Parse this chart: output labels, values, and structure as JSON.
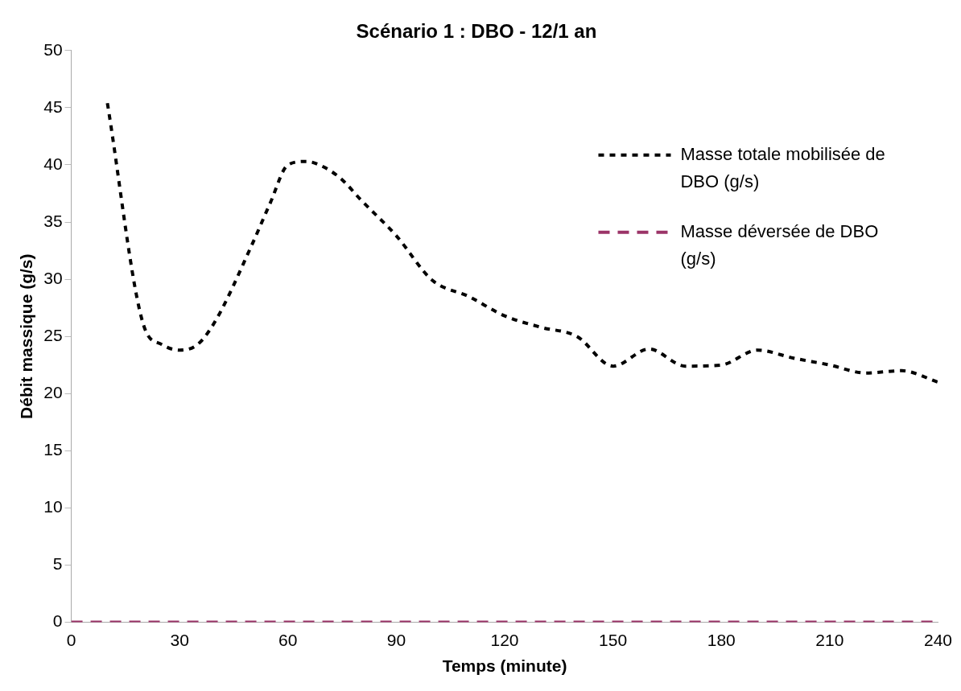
{
  "chart_data": {
    "type": "line",
    "title": "Scénario 1 : DBO - 12/1 an",
    "xlabel": "Temps (minute)",
    "ylabel": "Débit massique (g/s)",
    "xlim": [
      0,
      240
    ],
    "xticks": [
      0,
      30,
      60,
      90,
      120,
      150,
      180,
      210,
      240
    ],
    "ylim": [
      0,
      50
    ],
    "yticks": [
      0,
      5,
      10,
      15,
      20,
      25,
      30,
      35,
      40,
      45,
      50
    ],
    "grid": false,
    "legend": "top right",
    "marker": "none",
    "series": [
      {
        "name": "Masse totale mobilisée de DBO (g/s)",
        "color": "#000000",
        "line_style": "dotted",
        "x": [
          10,
          20,
          25,
          30,
          35,
          40,
          50,
          55,
          60,
          65,
          70,
          75,
          80,
          90,
          100,
          110,
          120,
          130,
          140,
          150,
          160,
          170,
          180,
          190,
          200,
          210,
          220,
          230,
          240
        ],
        "values": [
          45.4,
          26,
          24.3,
          23.8,
          24.3,
          26.4,
          33,
          36.6,
          40,
          40.3,
          39.8,
          38.7,
          37,
          33.8,
          29.9,
          28.5,
          26.8,
          25.8,
          25,
          22.4,
          23.9,
          22.4,
          22.5,
          23.8,
          23.1,
          22.5,
          21.8,
          22,
          21
        ]
      },
      {
        "name": "Masse déversée de DBO (g/s)",
        "color": "#9b3468",
        "line_style": "dashed",
        "x": [
          0,
          30,
          60,
          90,
          120,
          150,
          180,
          210,
          240
        ],
        "values": [
          0,
          0,
          0,
          0,
          0,
          0,
          0,
          0,
          0
        ]
      }
    ]
  }
}
